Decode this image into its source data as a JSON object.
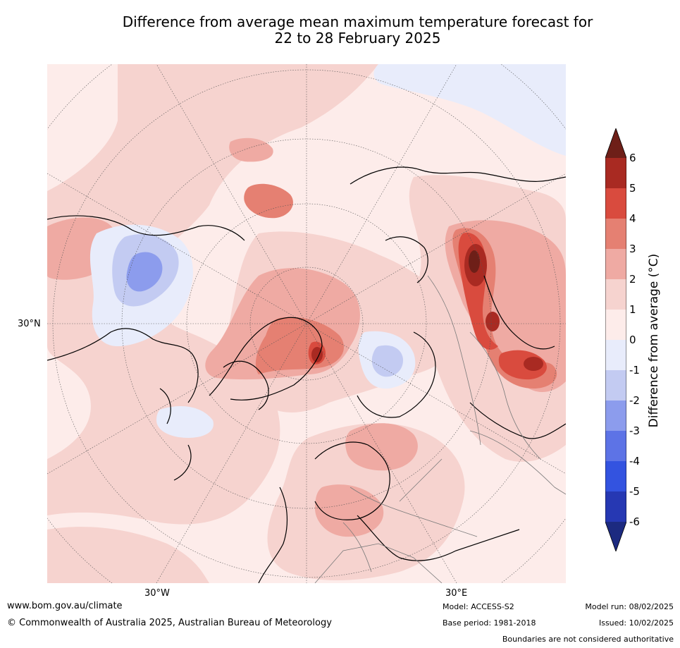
{
  "title": {
    "line1": "Difference from average mean maximum temperature forecast for",
    "line2": "22 to 28 February 2025"
  },
  "axis_labels": {
    "lat": "30°N",
    "lon_w": "30°W",
    "lon_e": "30°E"
  },
  "colorbar": {
    "label": "Difference from average (°C)",
    "ticks": [
      "6",
      "5",
      "4",
      "3",
      "2",
      "1",
      "0",
      "-1",
      "-2",
      "-3",
      "-4",
      "-5",
      "-6"
    ],
    "colors": {
      "over": "#6e1f18",
      "b5_6": "#a92a22",
      "b4_5": "#d94b3e",
      "b3_4": "#e58072",
      "b2_3": "#efaaa3",
      "b1_2": "#f6d3cf",
      "b0_1": "#fdecea",
      "bm1_0": "#e8ecfb",
      "bm2_m1": "#c3cbf2",
      "bm3_m2": "#8c9ced",
      "bm4_m3": "#5d73e6",
      "bm5_m4": "#3353e0",
      "bm6_m5": "#2638b3",
      "under": "#1c2a80"
    }
  },
  "footer": {
    "url": "www.bom.gov.au/climate",
    "copyright": "© Commonwealth of Australia 2025, Australian Bureau of Meteorology",
    "model": "Model: ACCESS-S2",
    "base_period": "Base period: 1981-2018",
    "model_run": "Model run: 08/02/2025",
    "issued": "Issued: 10/02/2025",
    "disclaimer": "Boundaries are not considered authoritative"
  }
}
